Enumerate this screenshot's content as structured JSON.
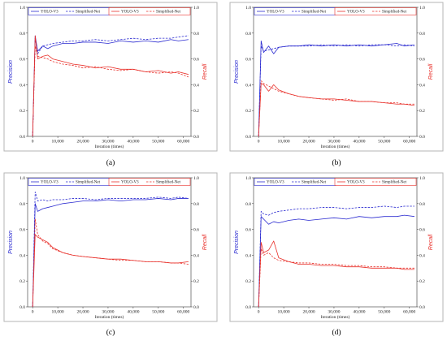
{
  "colors": {
    "precision": "#2a2ad0",
    "recall": "#e8302a"
  },
  "panels": [
    {
      "label": "(a)"
    },
    {
      "label": "(b)"
    },
    {
      "label": "(c)"
    },
    {
      "label": "(d)"
    }
  ],
  "chart_data": [
    {
      "type": "line",
      "panel": "(a)",
      "xlabel": "Iteration (times)",
      "ylabel_left": "Precision",
      "ylabel_right": "Recall",
      "xlim": [
        -2000,
        63000
      ],
      "ylim": [
        0,
        1.0
      ],
      "x_ticks": [
        0,
        10000,
        20000,
        30000,
        40000,
        50000,
        60000
      ],
      "x_tick_labels": [
        "0",
        "10,000",
        "20,000",
        "30,000",
        "40,000",
        "50,000",
        "60,000"
      ],
      "y_ticks": [
        0.0,
        0.2,
        0.4,
        0.6,
        0.8,
        1.0
      ],
      "y_tick_labels": [
        "0.0",
        "0.2",
        "0.4",
        "0.6",
        "0.8",
        "1.0"
      ],
      "legend_left": [
        "YOLO-V3",
        "Simplified-Net"
      ],
      "legend_right": [
        "YOLO-V3",
        "Simplified-Net"
      ],
      "series": [
        {
          "name": "YOLO-V3",
          "metric": "precision",
          "style": "solid",
          "x": [
            0,
            1000,
            2000,
            4000,
            6000,
            8000,
            12000,
            16000,
            20000,
            25000,
            30000,
            35000,
            40000,
            45000,
            50000,
            55000,
            58000,
            62000
          ],
          "y": [
            0.0,
            0.78,
            0.66,
            0.7,
            0.68,
            0.7,
            0.72,
            0.72,
            0.73,
            0.73,
            0.72,
            0.74,
            0.73,
            0.74,
            0.73,
            0.75,
            0.74,
            0.75
          ]
        },
        {
          "name": "Simplified-Net",
          "metric": "precision",
          "style": "dashed",
          "x": [
            0,
            1000,
            2000,
            4000,
            6000,
            8000,
            12000,
            16000,
            20000,
            25000,
            30000,
            35000,
            40000,
            45000,
            50000,
            55000,
            58000,
            62000
          ],
          "y": [
            0.0,
            0.76,
            0.64,
            0.7,
            0.71,
            0.72,
            0.73,
            0.74,
            0.74,
            0.75,
            0.74,
            0.75,
            0.76,
            0.75,
            0.76,
            0.76,
            0.77,
            0.78
          ]
        },
        {
          "name": "YOLO-V3",
          "metric": "recall",
          "style": "solid",
          "x": [
            0,
            1000,
            2000,
            4000,
            6000,
            8000,
            12000,
            16000,
            20000,
            25000,
            30000,
            35000,
            40000,
            45000,
            50000,
            55000,
            58000,
            62000
          ],
          "y": [
            0.0,
            0.78,
            0.6,
            0.62,
            0.63,
            0.6,
            0.58,
            0.56,
            0.55,
            0.53,
            0.54,
            0.52,
            0.52,
            0.5,
            0.51,
            0.49,
            0.5,
            0.48
          ]
        },
        {
          "name": "Simplified-Net",
          "metric": "recall",
          "style": "dashed",
          "x": [
            0,
            1000,
            2000,
            4000,
            6000,
            8000,
            12000,
            16000,
            20000,
            25000,
            30000,
            35000,
            40000,
            45000,
            50000,
            55000,
            58000,
            62000
          ],
          "y": [
            0.0,
            0.7,
            0.62,
            0.61,
            0.6,
            0.58,
            0.56,
            0.55,
            0.53,
            0.54,
            0.52,
            0.51,
            0.52,
            0.5,
            0.49,
            0.5,
            0.49,
            0.46
          ]
        }
      ]
    },
    {
      "type": "line",
      "panel": "(b)",
      "xlabel": "Iteration (times)",
      "ylabel_left": "Precision",
      "ylabel_right": "Recall",
      "xlim": [
        -2000,
        63000
      ],
      "ylim": [
        0,
        1.0
      ],
      "x_ticks": [
        0,
        10000,
        20000,
        30000,
        40000,
        50000,
        60000
      ],
      "x_tick_labels": [
        "0",
        "10,000",
        "20,000",
        "30,000",
        "40,000",
        "50,000",
        "60,000"
      ],
      "y_ticks": [
        0.0,
        0.2,
        0.4,
        0.6,
        0.8,
        1.0
      ],
      "y_tick_labels": [
        "0.0",
        "0.2",
        "0.4",
        "0.6",
        "0.8",
        "1.0"
      ],
      "legend_left": [
        "YOLO-V3",
        "Simplified-Net"
      ],
      "legend_right": [
        "YOLO-V3",
        "Simplified-Net"
      ],
      "series": [
        {
          "name": "YOLO-V3",
          "metric": "precision",
          "style": "solid",
          "x": [
            0,
            1000,
            2000,
            4000,
            6000,
            8000,
            12000,
            16000,
            20000,
            25000,
            30000,
            35000,
            40000,
            45000,
            50000,
            55000,
            58000,
            62000
          ],
          "y": [
            0.0,
            0.74,
            0.65,
            0.7,
            0.64,
            0.69,
            0.7,
            0.7,
            0.71,
            0.7,
            0.71,
            0.7,
            0.71,
            0.7,
            0.71,
            0.72,
            0.7,
            0.71
          ]
        },
        {
          "name": "Simplified-Net",
          "metric": "precision",
          "style": "dashed",
          "x": [
            0,
            1000,
            2000,
            4000,
            6000,
            8000,
            12000,
            16000,
            20000,
            25000,
            30000,
            35000,
            40000,
            45000,
            50000,
            55000,
            58000,
            62000
          ],
          "y": [
            0.0,
            0.7,
            0.66,
            0.67,
            0.68,
            0.69,
            0.7,
            0.7,
            0.7,
            0.71,
            0.7,
            0.71,
            0.7,
            0.71,
            0.71,
            0.7,
            0.71,
            0.7
          ]
        },
        {
          "name": "YOLO-V3",
          "metric": "recall",
          "style": "solid",
          "x": [
            0,
            1000,
            2000,
            4000,
            6000,
            8000,
            12000,
            16000,
            20000,
            25000,
            30000,
            35000,
            40000,
            45000,
            50000,
            55000,
            58000,
            62000
          ],
          "y": [
            0.0,
            0.41,
            0.4,
            0.35,
            0.4,
            0.36,
            0.33,
            0.31,
            0.3,
            0.29,
            0.29,
            0.28,
            0.27,
            0.27,
            0.26,
            0.25,
            0.25,
            0.24
          ]
        },
        {
          "name": "Simplified-Net",
          "metric": "recall",
          "style": "dashed",
          "x": [
            0,
            1000,
            2000,
            4000,
            6000,
            8000,
            12000,
            16000,
            20000,
            25000,
            30000,
            35000,
            40000,
            45000,
            50000,
            55000,
            58000,
            62000
          ],
          "y": [
            0.0,
            0.43,
            0.41,
            0.39,
            0.37,
            0.35,
            0.33,
            0.31,
            0.3,
            0.29,
            0.28,
            0.29,
            0.27,
            0.27,
            0.26,
            0.26,
            0.25,
            0.25
          ]
        }
      ]
    },
    {
      "type": "line",
      "panel": "(c)",
      "xlabel": "Iteration (times)",
      "ylabel_left": "Precision",
      "ylabel_right": "Recall",
      "xlim": [
        -2000,
        63000
      ],
      "ylim": [
        0,
        1.0
      ],
      "x_ticks": [
        0,
        10000,
        20000,
        30000,
        40000,
        50000,
        60000
      ],
      "x_tick_labels": [
        "0",
        "10,000",
        "20,000",
        "30,000",
        "40,000",
        "50,000",
        "60,000"
      ],
      "y_ticks": [
        0.0,
        0.2,
        0.4,
        0.6,
        0.8,
        1.0
      ],
      "y_tick_labels": [
        "0.0",
        "0.2",
        "0.4",
        "0.6",
        "0.8",
        "1.0"
      ],
      "legend_left": [
        "YOLO-V3",
        "Simplified-Net"
      ],
      "legend_right": [
        "YOLO-V3",
        "Simplified-Net"
      ],
      "series": [
        {
          "name": "YOLO-V3",
          "metric": "precision",
          "style": "solid",
          "x": [
            0,
            1000,
            2000,
            4000,
            6000,
            8000,
            12000,
            16000,
            20000,
            25000,
            30000,
            35000,
            40000,
            45000,
            50000,
            55000,
            58000,
            62000
          ],
          "y": [
            0.0,
            0.8,
            0.74,
            0.76,
            0.77,
            0.78,
            0.8,
            0.81,
            0.82,
            0.82,
            0.83,
            0.82,
            0.83,
            0.83,
            0.84,
            0.83,
            0.84,
            0.84
          ]
        },
        {
          "name": "Simplified-Net",
          "metric": "precision",
          "style": "dashed",
          "x": [
            0,
            1000,
            2000,
            4000,
            6000,
            8000,
            12000,
            16000,
            20000,
            25000,
            30000,
            35000,
            40000,
            45000,
            50000,
            55000,
            58000,
            62000
          ],
          "y": [
            0.0,
            0.89,
            0.82,
            0.83,
            0.82,
            0.83,
            0.83,
            0.84,
            0.84,
            0.83,
            0.84,
            0.84,
            0.84,
            0.84,
            0.85,
            0.84,
            0.85,
            0.84
          ]
        },
        {
          "name": "YOLO-V3",
          "metric": "recall",
          "style": "solid",
          "x": [
            0,
            1000,
            2000,
            4000,
            6000,
            8000,
            12000,
            16000,
            20000,
            25000,
            30000,
            35000,
            40000,
            45000,
            50000,
            55000,
            58000,
            62000
          ],
          "y": [
            0.0,
            0.56,
            0.54,
            0.52,
            0.5,
            0.46,
            0.42,
            0.4,
            0.39,
            0.38,
            0.37,
            0.37,
            0.36,
            0.35,
            0.35,
            0.34,
            0.34,
            0.35
          ]
        },
        {
          "name": "Simplified-Net",
          "metric": "recall",
          "style": "dashed",
          "x": [
            0,
            1000,
            2000,
            4000,
            6000,
            8000,
            12000,
            16000,
            20000,
            25000,
            30000,
            35000,
            40000,
            45000,
            50000,
            55000,
            58000,
            62000
          ],
          "y": [
            0.0,
            0.68,
            0.56,
            0.51,
            0.49,
            0.45,
            0.42,
            0.4,
            0.39,
            0.38,
            0.37,
            0.36,
            0.36,
            0.35,
            0.35,
            0.34,
            0.34,
            0.33
          ]
        }
      ]
    },
    {
      "type": "line",
      "panel": "(d)",
      "xlabel": "Iteration (times)",
      "ylabel_left": "Precision",
      "ylabel_right": "Recall",
      "xlim": [
        -2000,
        63000
      ],
      "ylim": [
        0,
        1.0
      ],
      "x_ticks": [
        0,
        10000,
        20000,
        30000,
        40000,
        50000,
        60000
      ],
      "x_tick_labels": [
        "0",
        "10,000",
        "20,000",
        "30,000",
        "40,000",
        "50,000",
        "60,000"
      ],
      "y_ticks": [
        0.0,
        0.2,
        0.4,
        0.6,
        0.8,
        1.0
      ],
      "y_tick_labels": [
        "0.0",
        "0.2",
        "0.4",
        "0.6",
        "0.8",
        "1.0"
      ],
      "legend_left": [
        "YOLO-V3",
        "Simplified-Net"
      ],
      "legend_right": [
        "YOLO-V3",
        "Simplified-Net"
      ],
      "series": [
        {
          "name": "YOLO-V3",
          "metric": "precision",
          "style": "solid",
          "x": [
            0,
            1000,
            2000,
            4000,
            6000,
            8000,
            12000,
            16000,
            20000,
            25000,
            30000,
            35000,
            40000,
            45000,
            50000,
            55000,
            58000,
            62000
          ],
          "y": [
            0.0,
            0.7,
            0.68,
            0.64,
            0.66,
            0.65,
            0.67,
            0.68,
            0.67,
            0.68,
            0.69,
            0.68,
            0.7,
            0.69,
            0.7,
            0.7,
            0.71,
            0.7
          ]
        },
        {
          "name": "Simplified-Net",
          "metric": "precision",
          "style": "dashed",
          "x": [
            0,
            1000,
            2000,
            4000,
            6000,
            8000,
            12000,
            16000,
            20000,
            25000,
            30000,
            35000,
            40000,
            45000,
            50000,
            55000,
            58000,
            62000
          ],
          "y": [
            0.0,
            0.74,
            0.72,
            0.71,
            0.73,
            0.74,
            0.75,
            0.76,
            0.76,
            0.77,
            0.77,
            0.76,
            0.77,
            0.77,
            0.78,
            0.77,
            0.78,
            0.78
          ]
        },
        {
          "name": "YOLO-V3",
          "metric": "recall",
          "style": "solid",
          "x": [
            0,
            1000,
            2000,
            4000,
            6000,
            8000,
            12000,
            16000,
            20000,
            25000,
            30000,
            35000,
            40000,
            45000,
            50000,
            55000,
            58000,
            62000
          ],
          "y": [
            0.0,
            0.5,
            0.42,
            0.44,
            0.51,
            0.38,
            0.35,
            0.33,
            0.33,
            0.32,
            0.32,
            0.31,
            0.31,
            0.3,
            0.3,
            0.3,
            0.29,
            0.29
          ]
        },
        {
          "name": "Simplified-Net",
          "metric": "recall",
          "style": "dashed",
          "x": [
            0,
            1000,
            2000,
            4000,
            6000,
            8000,
            12000,
            16000,
            20000,
            25000,
            30000,
            35000,
            40000,
            45000,
            50000,
            55000,
            58000,
            62000
          ],
          "y": [
            0.0,
            0.45,
            0.4,
            0.42,
            0.38,
            0.36,
            0.35,
            0.34,
            0.34,
            0.33,
            0.33,
            0.32,
            0.32,
            0.31,
            0.31,
            0.3,
            0.3,
            0.3
          ]
        }
      ]
    }
  ]
}
